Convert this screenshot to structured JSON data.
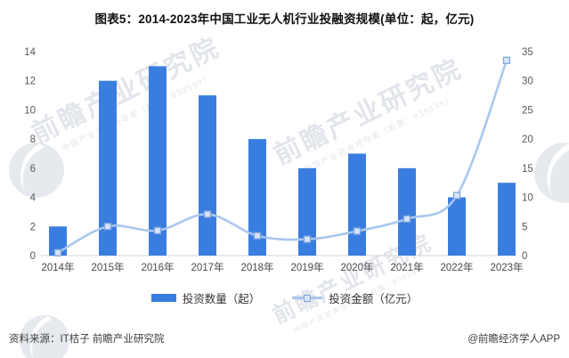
{
  "title": "图表5：2014-2023年中国工业无人机行业投融资规模(单位：起，亿元)",
  "chart_data": {
    "type": "bar+line combo",
    "categories": [
      "2014年",
      "2015年",
      "2016年",
      "2017年",
      "2018年",
      "2019年",
      "2020年",
      "2021年",
      "2022年",
      "2023年"
    ],
    "series": [
      {
        "name": "投资数量（起）",
        "type": "bar",
        "axis": "left",
        "values": [
          2,
          12,
          13,
          11,
          8,
          6,
          7,
          6,
          4,
          5
        ],
        "color": "#3A7DE0"
      },
      {
        "name": "投资金额（亿元）",
        "type": "line",
        "axis": "right",
        "values": [
          0.5,
          5.0,
          4.3,
          7.1,
          3.4,
          2.8,
          4.2,
          6.3,
          10.3,
          33.5
        ],
        "color": "#A9C7EF",
        "marker_fill": "#D7E4F7",
        "marker_border": "#7EA6DE"
      }
    ],
    "left_axis": {
      "min": 0,
      "max": 14,
      "ticks": [
        0,
        2,
        4,
        6,
        8,
        10,
        12,
        14
      ]
    },
    "right_axis": {
      "min": 0,
      "max": 35,
      "ticks": [
        0,
        5,
        10,
        15,
        20,
        25,
        30,
        35
      ]
    },
    "grid": false,
    "legend_position": "bottom",
    "axis_line_color": "#D9D9D9",
    "tick_label_color": "#595959",
    "x_label_color": "#4a4a4a"
  },
  "legend": {
    "bar_label": "投资数量（起）",
    "line_label": "投资金额（亿元）"
  },
  "footer": {
    "source": "资料来源：IT桔子 前瞻产业研究院",
    "credit": "@前瞻经济学人APP"
  },
  "watermark": {
    "brand": "前瞻产业研究院",
    "tagline": "中国产业咨询领导者（股票：839599）"
  },
  "colors": {
    "bar": "#3A7DE0",
    "line": "#A9C7EF",
    "marker_fill": "#D7E4F7",
    "marker_border": "#7EA6DE",
    "axis": "#D9D9D9"
  }
}
